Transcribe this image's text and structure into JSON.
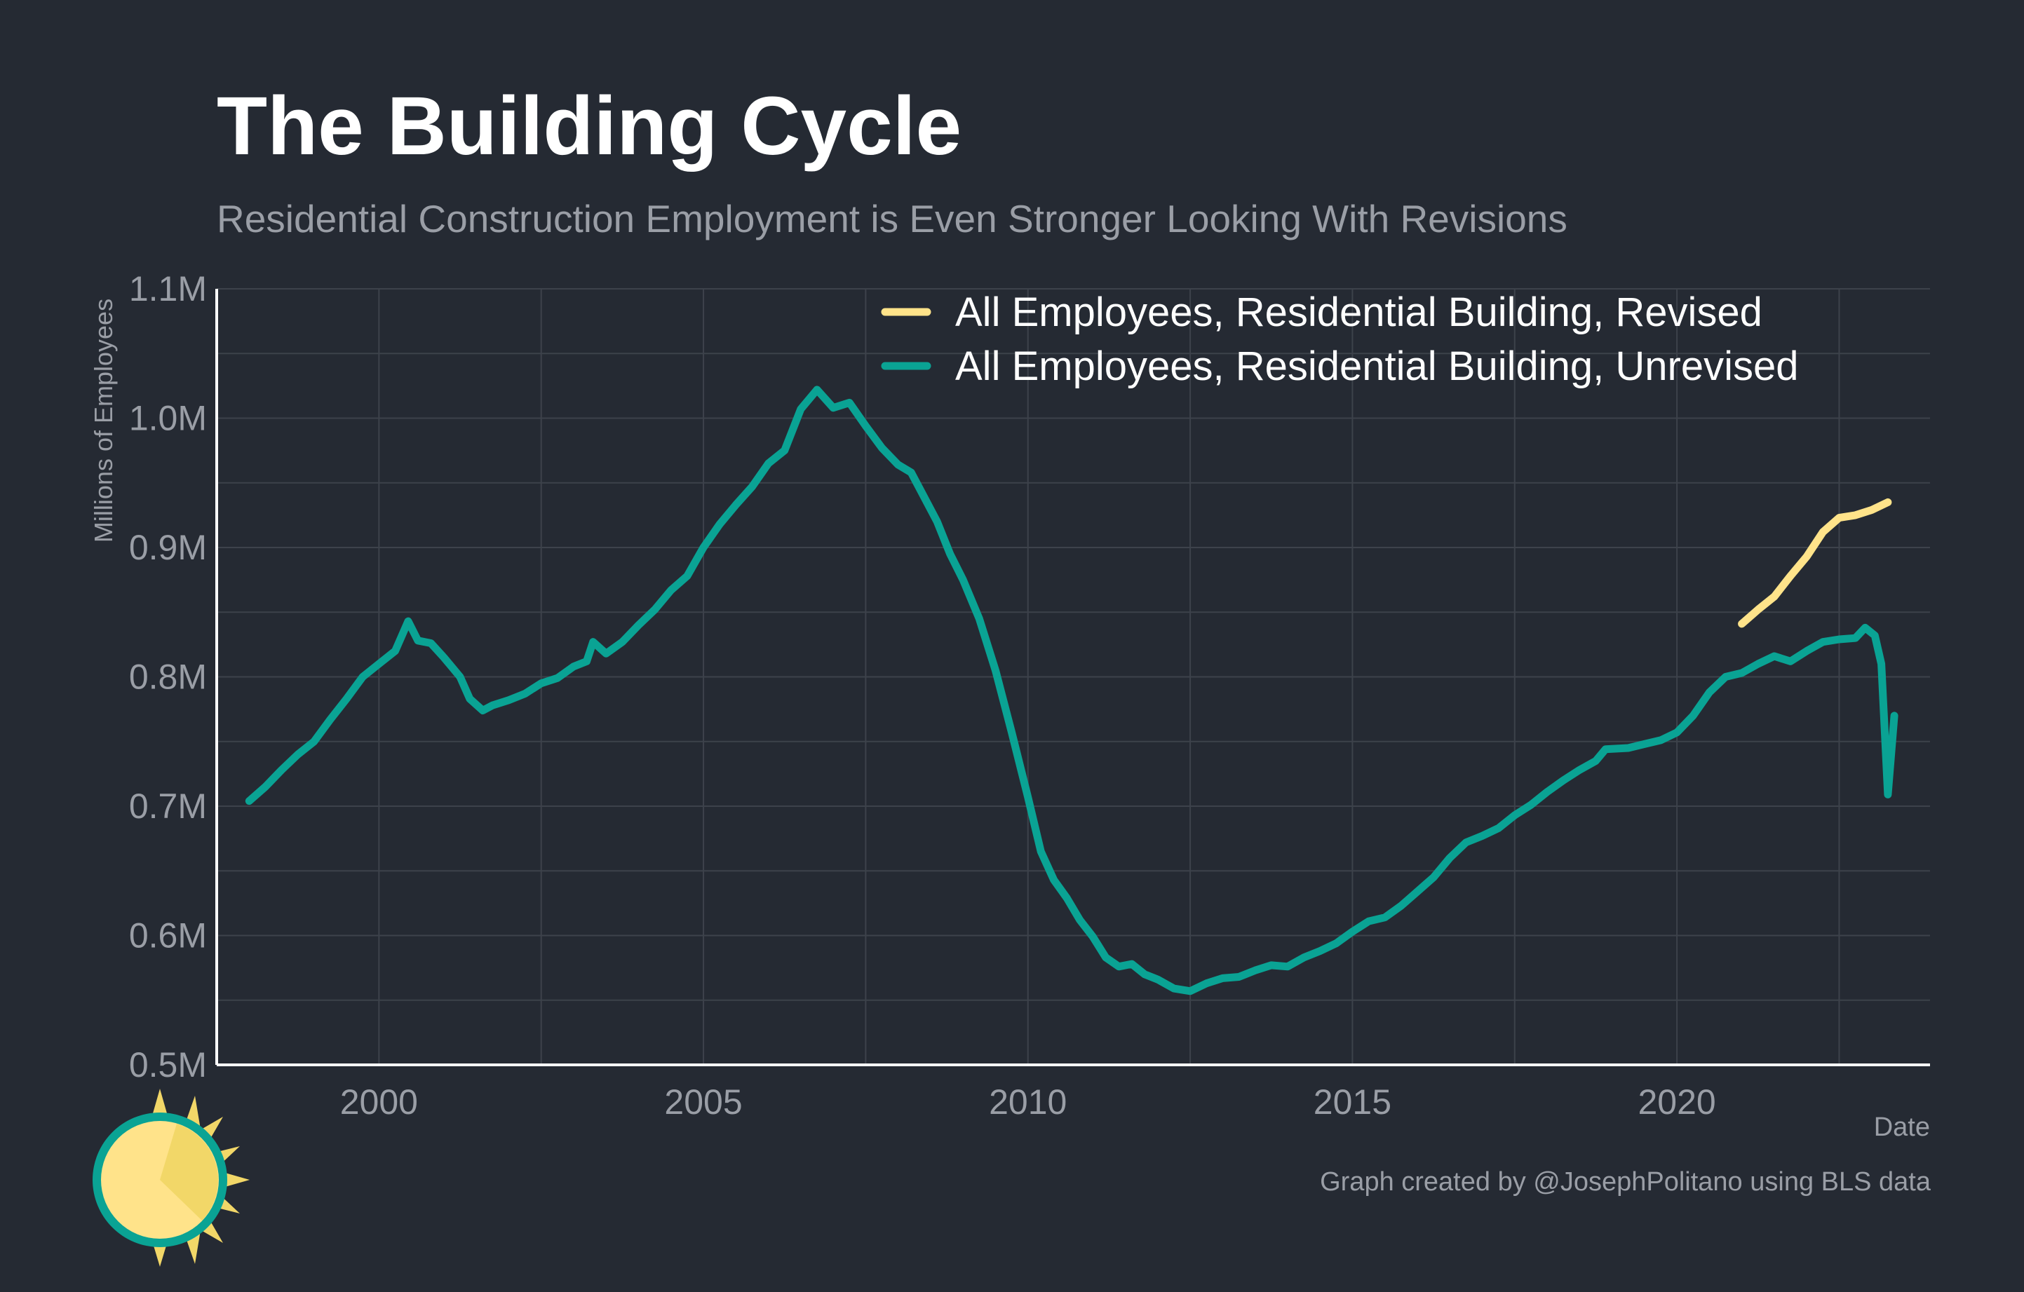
{
  "title": "The Building Cycle",
  "subtitle": "Residential Construction Employment is Even Stronger Looking With Revisions",
  "caption": "Graph created by @JosephPolitano using BLS data",
  "logo": "sun-icon",
  "colors": {
    "background": "#252a33",
    "revised": "#ffe38a",
    "unrevised": "#0aa394",
    "grid": "#3d424b",
    "axis": "#ffffff"
  },
  "chart_data": {
    "type": "line",
    "xlabel": "Date",
    "ylabel": "Millions of Employees",
    "xlim": [
      1997.5,
      2023.9
    ],
    "ylim": [
      0.5,
      1.1
    ],
    "x_ticks": [
      2000,
      2005,
      2010,
      2015,
      2020
    ],
    "x_tick_labels": [
      "2000",
      "2005",
      "2010",
      "2015",
      "2020"
    ],
    "y_ticks": [
      0.5,
      0.6,
      0.7,
      0.8,
      0.9,
      1.0,
      1.1
    ],
    "y_tick_labels": [
      "0.5M",
      "0.6M",
      "0.7M",
      "0.8M",
      "0.9M",
      "1.0M",
      "1.1M"
    ],
    "grid": true,
    "legend_position": "top-right",
    "series": [
      {
        "name": "All Employees, Residential Building, Revised",
        "color": "#ffe38a",
        "points": [
          [
            2021.0,
            0.841
          ],
          [
            2021.25,
            0.852
          ],
          [
            2021.5,
            0.862
          ],
          [
            2021.75,
            0.878
          ],
          [
            2022.0,
            0.893
          ],
          [
            2022.25,
            0.912
          ],
          [
            2022.5,
            0.923
          ],
          [
            2022.75,
            0.925
          ],
          [
            2023.0,
            0.929
          ],
          [
            2023.25,
            0.935
          ]
        ]
      },
      {
        "name": "All Employees, Residential Building, Unrevised",
        "color": "#0aa394",
        "points": [
          [
            1998.0,
            0.704
          ],
          [
            1998.25,
            0.715
          ],
          [
            1998.5,
            0.728
          ],
          [
            1998.75,
            0.74
          ],
          [
            1999.0,
            0.75
          ],
          [
            1999.25,
            0.767
          ],
          [
            1999.5,
            0.783
          ],
          [
            1999.75,
            0.8
          ],
          [
            2000.0,
            0.81
          ],
          [
            2000.25,
            0.82
          ],
          [
            2000.45,
            0.843
          ],
          [
            2000.6,
            0.828
          ],
          [
            2000.8,
            0.826
          ],
          [
            2001.0,
            0.815
          ],
          [
            2001.25,
            0.8
          ],
          [
            2001.4,
            0.783
          ],
          [
            2001.6,
            0.774
          ],
          [
            2001.75,
            0.778
          ],
          [
            2002.0,
            0.782
          ],
          [
            2002.25,
            0.787
          ],
          [
            2002.5,
            0.795
          ],
          [
            2002.75,
            0.799
          ],
          [
            2003.0,
            0.808
          ],
          [
            2003.2,
            0.812
          ],
          [
            2003.3,
            0.827
          ],
          [
            2003.5,
            0.818
          ],
          [
            2003.75,
            0.827
          ],
          [
            2004.0,
            0.84
          ],
          [
            2004.25,
            0.852
          ],
          [
            2004.5,
            0.867
          ],
          [
            2004.75,
            0.878
          ],
          [
            2005.0,
            0.9
          ],
          [
            2005.25,
            0.918
          ],
          [
            2005.5,
            0.933
          ],
          [
            2005.75,
            0.947
          ],
          [
            2006.0,
            0.965
          ],
          [
            2006.25,
            0.975
          ],
          [
            2006.5,
            1.007
          ],
          [
            2006.75,
            1.022
          ],
          [
            2007.0,
            1.008
          ],
          [
            2007.25,
            1.012
          ],
          [
            2007.5,
            0.994
          ],
          [
            2007.75,
            0.977
          ],
          [
            2008.0,
            0.964
          ],
          [
            2008.2,
            0.958
          ],
          [
            2008.4,
            0.939
          ],
          [
            2008.6,
            0.92
          ],
          [
            2008.8,
            0.895
          ],
          [
            2009.0,
            0.875
          ],
          [
            2009.25,
            0.845
          ],
          [
            2009.5,
            0.805
          ],
          [
            2009.75,
            0.757
          ],
          [
            2010.0,
            0.707
          ],
          [
            2010.2,
            0.665
          ],
          [
            2010.4,
            0.643
          ],
          [
            2010.6,
            0.629
          ],
          [
            2010.8,
            0.612
          ],
          [
            2011.0,
            0.599
          ],
          [
            2011.2,
            0.583
          ],
          [
            2011.4,
            0.576
          ],
          [
            2011.6,
            0.578
          ],
          [
            2011.8,
            0.57
          ],
          [
            2012.0,
            0.566
          ],
          [
            2012.25,
            0.559
          ],
          [
            2012.5,
            0.557
          ],
          [
            2012.75,
            0.563
          ],
          [
            2013.0,
            0.567
          ],
          [
            2013.25,
            0.568
          ],
          [
            2013.5,
            0.573
          ],
          [
            2013.75,
            0.577
          ],
          [
            2014.0,
            0.576
          ],
          [
            2014.25,
            0.583
          ],
          [
            2014.5,
            0.588
          ],
          [
            2014.75,
            0.594
          ],
          [
            2015.0,
            0.603
          ],
          [
            2015.25,
            0.611
          ],
          [
            2015.5,
            0.614
          ],
          [
            2015.75,
            0.623
          ],
          [
            2016.0,
            0.634
          ],
          [
            2016.25,
            0.645
          ],
          [
            2016.5,
            0.66
          ],
          [
            2016.75,
            0.672
          ],
          [
            2017.0,
            0.677
          ],
          [
            2017.25,
            0.683
          ],
          [
            2017.5,
            0.693
          ],
          [
            2017.75,
            0.701
          ],
          [
            2018.0,
            0.711
          ],
          [
            2018.25,
            0.72
          ],
          [
            2018.5,
            0.728
          ],
          [
            2018.75,
            0.735
          ],
          [
            2018.9,
            0.744
          ],
          [
            2019.25,
            0.745
          ],
          [
            2019.5,
            0.748
          ],
          [
            2019.75,
            0.751
          ],
          [
            2020.0,
            0.757
          ],
          [
            2020.25,
            0.77
          ],
          [
            2020.5,
            0.788
          ],
          [
            2020.75,
            0.8
          ],
          [
            2021.0,
            0.803
          ],
          [
            2021.25,
            0.81
          ],
          [
            2021.5,
            0.816
          ],
          [
            2021.75,
            0.812
          ],
          [
            2022.0,
            0.82
          ],
          [
            2022.25,
            0.827
          ],
          [
            2022.5,
            0.829
          ],
          [
            2022.75,
            0.83
          ],
          [
            2022.9,
            0.838
          ],
          [
            2023.05,
            0.832
          ],
          [
            2023.15,
            0.81
          ],
          [
            2023.25,
            0.709
          ],
          [
            2023.35,
            0.77
          ]
        ]
      }
    ]
  }
}
